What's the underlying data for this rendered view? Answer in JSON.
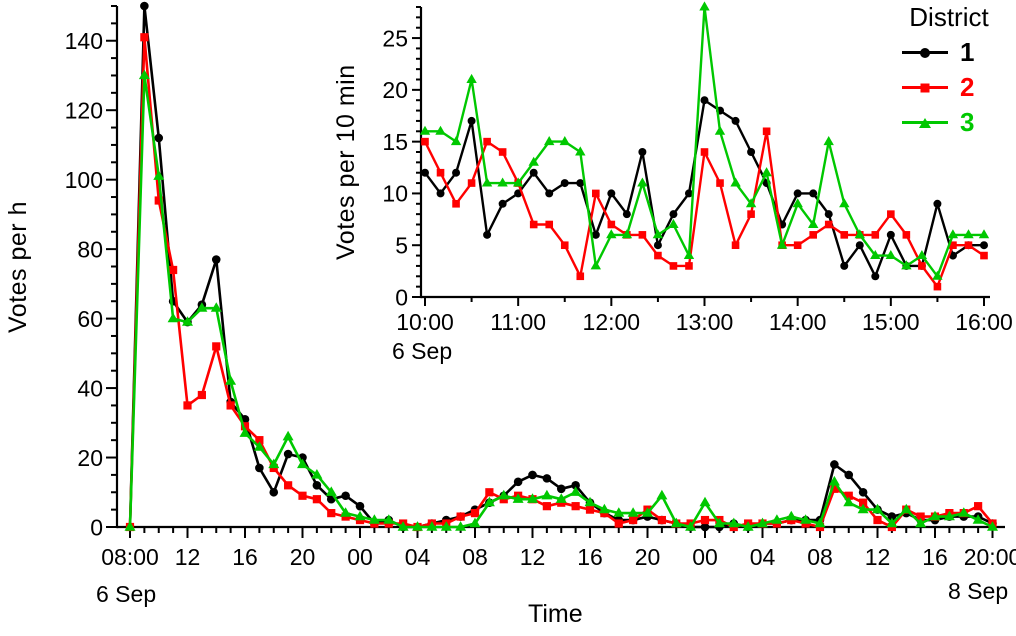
{
  "page": {
    "background": "#ffffff"
  },
  "labels": {
    "main_ylabel": "Votes per h",
    "main_xlabel": "Time",
    "main_date_left": "6 Sep",
    "main_date_right": "8 Sep",
    "inset_ylabel": "Votes per 10 min",
    "inset_date": "6 Sep"
  },
  "legend": {
    "title": "District",
    "position": "top-right",
    "items": [
      {
        "label": "1",
        "color": "#000000",
        "marker": "circle"
      },
      {
        "label": "2",
        "color": "#ff0000",
        "marker": "square"
      },
      {
        "label": "3",
        "color": "#00c800",
        "marker": "triangle"
      }
    ]
  },
  "chart_data": [
    {
      "id": "main",
      "type": "line",
      "title": "",
      "xlabel": "Time",
      "ylabel": "Votes per h",
      "x_axis_description": "hourly data from 6 Sep 08:00 to 8 Sep 20:00",
      "xlim_hours": [
        8,
        68
      ],
      "ylim": [
        0,
        150
      ],
      "grid": false,
      "x_tick_hours": [
        8,
        12,
        16,
        20,
        24,
        28,
        32,
        36,
        40,
        44,
        48,
        52,
        56,
        60,
        64,
        68
      ],
      "x_tick_labels": [
        "08:00",
        "12",
        "16",
        "20",
        "00",
        "04",
        "08",
        "12",
        "16",
        "20",
        "00",
        "04",
        "08",
        "12",
        "16",
        "20:00"
      ],
      "x_minor_step": 1,
      "y_ticks": [
        0,
        20,
        40,
        60,
        80,
        100,
        120,
        140
      ],
      "y_minor_step": 5,
      "x_start": 8,
      "x_step": 1,
      "series": [
        {
          "name": "1",
          "color": "#000000",
          "marker": "circle",
          "values": [
            0,
            150,
            112,
            65,
            59,
            64,
            77,
            36,
            31,
            17,
            10,
            21,
            20,
            12,
            8,
            9,
            6,
            1,
            2,
            0,
            0,
            1,
            2,
            3,
            5,
            7,
            9,
            13,
            15,
            14,
            11,
            12,
            7,
            4,
            2,
            2,
            3,
            2,
            1,
            0,
            0,
            0,
            1,
            0,
            1,
            1,
            2,
            2,
            2,
            18,
            15,
            10,
            5,
            3,
            4,
            2,
            2,
            3,
            3,
            3,
            1
          ]
        },
        {
          "name": "2",
          "color": "#ff0000",
          "marker": "square",
          "values": [
            0,
            141,
            94,
            74,
            35,
            38,
            52,
            35,
            29,
            25,
            17,
            12,
            9,
            8,
            4,
            3,
            2,
            1,
            1,
            1,
            0,
            1,
            1,
            3,
            4,
            10,
            8,
            9,
            8,
            6,
            7,
            6,
            5,
            4,
            1,
            2,
            5,
            2,
            1,
            1,
            2,
            2,
            0,
            1,
            1,
            1,
            2,
            1,
            0,
            11,
            9,
            7,
            2,
            0,
            5,
            3,
            3,
            4,
            4,
            6,
            1
          ]
        },
        {
          "name": "3",
          "color": "#00c800",
          "marker": "triangle",
          "values": [
            0,
            130,
            101,
            60,
            59,
            63,
            63,
            42,
            27,
            23,
            18,
            26,
            18,
            15,
            10,
            4,
            3,
            2,
            2,
            0,
            0,
            0,
            0,
            0,
            1,
            7,
            9,
            8,
            8,
            9,
            8,
            10,
            7,
            5,
            4,
            4,
            4,
            9,
            1,
            0,
            7,
            1,
            1,
            0,
            1,
            2,
            3,
            2,
            1,
            13,
            7,
            5,
            5,
            1,
            5,
            1,
            3,
            3,
            4,
            2,
            0
          ]
        }
      ]
    },
    {
      "id": "inset",
      "type": "line",
      "title": "",
      "xlabel": "",
      "ylabel": "Votes per 10 min",
      "x_axis_description": "10-minute data from 6 Sep 10:00 to 16:00",
      "xlim_hours": [
        10,
        16
      ],
      "ylim": [
        0,
        28
      ],
      "grid": false,
      "x_tick_hours": [
        10,
        11,
        12,
        13,
        14,
        15,
        16
      ],
      "x_tick_labels": [
        "10:00",
        "11:00",
        "12:00",
        "13:00",
        "14:00",
        "15:00",
        "16:00"
      ],
      "x_minor_step": 0.5,
      "y_ticks": [
        0,
        5,
        10,
        15,
        20,
        25
      ],
      "y_minor_step": 1,
      "x_start": 10,
      "x_step": 0.1666667,
      "series": [
        {
          "name": "1",
          "color": "#000000",
          "marker": "circle",
          "values": [
            12,
            10,
            12,
            17,
            6,
            9,
            10,
            12,
            10,
            11,
            11,
            6,
            10,
            8,
            14,
            5,
            8,
            10,
            19,
            18,
            17,
            14,
            11,
            7,
            10,
            10,
            8,
            3,
            5,
            2,
            6,
            3,
            3,
            9,
            4,
            5,
            5
          ]
        },
        {
          "name": "2",
          "color": "#ff0000",
          "marker": "square",
          "values": [
            15,
            12,
            9,
            11,
            15,
            14,
            11,
            7,
            7,
            5,
            2,
            10,
            7,
            6,
            6,
            4,
            3,
            3,
            14,
            11,
            5,
            8,
            16,
            5,
            5,
            6,
            7,
            6,
            6,
            6,
            8,
            6,
            3,
            1,
            5,
            5,
            4
          ]
        },
        {
          "name": "3",
          "color": "#00c800",
          "marker": "triangle",
          "values": [
            16,
            16,
            15,
            21,
            11,
            11,
            11,
            13,
            15,
            15,
            14,
            3,
            6,
            6,
            11,
            6,
            7,
            4,
            28,
            16,
            11,
            9,
            12,
            5,
            9,
            7,
            15,
            9,
            6,
            4,
            4,
            3,
            4,
            2,
            6,
            6,
            6
          ]
        }
      ]
    }
  ]
}
